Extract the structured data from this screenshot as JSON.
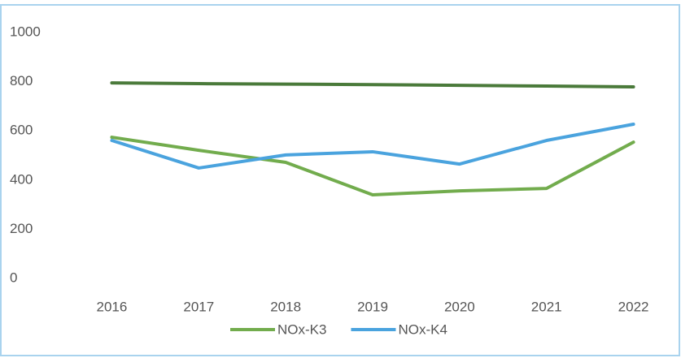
{
  "chart_data": {
    "type": "line",
    "categories": [
      "2016",
      "2017",
      "2018",
      "2019",
      "2020",
      "2021",
      "2022"
    ],
    "series": [
      {
        "color": "#4a7a3a",
        "values": [
          795,
          792,
          790,
          788,
          785,
          782,
          779
        ]
      },
      {
        "name": "NOx-K3",
        "color": "#72ac4d",
        "values": [
          574,
          521,
          472,
          340,
          356,
          366,
          554
        ]
      },
      {
        "name": "NOx-K4",
        "color": "#4aa3de",
        "values": [
          561,
          449,
          502,
          515,
          465,
          561,
          627
        ]
      }
    ],
    "ylim": [
      0,
      1000
    ],
    "yticks": [
      0,
      200,
      400,
      600,
      800,
      1000
    ],
    "grid": false,
    "legend": "bottom"
  }
}
